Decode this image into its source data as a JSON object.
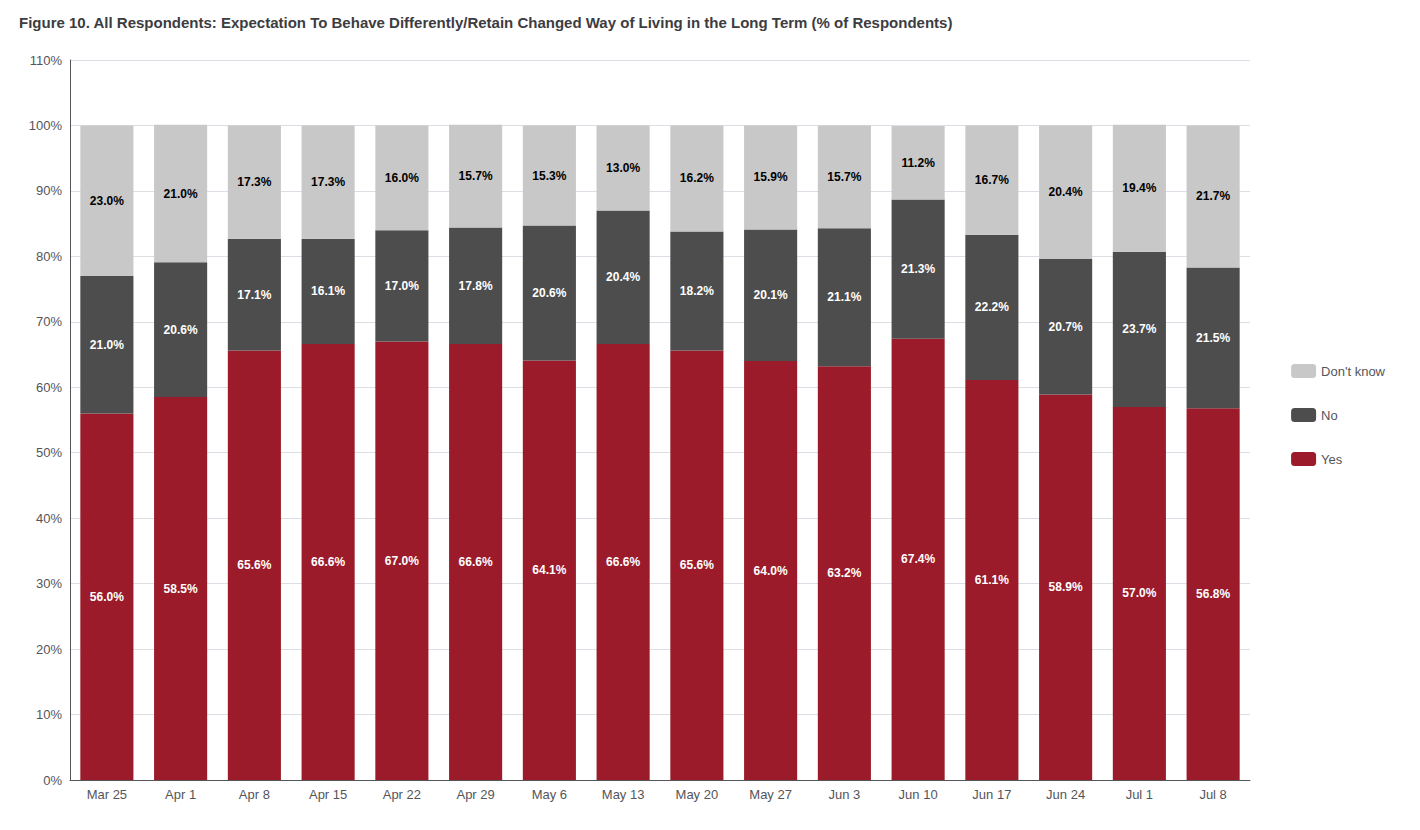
{
  "chart_data": {
    "type": "bar",
    "title": "Figure 10. All Respondents: Expectation To Behave Differently/Retain Changed Way of Living in the Long Term (% of Respondents)",
    "categories": [
      "Mar 25",
      "Apr 1",
      "Apr 8",
      "Apr 15",
      "Apr 22",
      "Apr 29",
      "May 6",
      "May 13",
      "May 20",
      "May 27",
      "Jun 3",
      "Jun 10",
      "Jun 17",
      "Jun 24",
      "Jul 1",
      "Jul 8"
    ],
    "series": [
      {
        "name": "Yes",
        "color": "#9B1B2A",
        "values": [
          56.0,
          58.5,
          65.6,
          66.6,
          67.0,
          66.6,
          64.1,
          66.6,
          65.6,
          64.0,
          63.2,
          67.4,
          61.1,
          58.9,
          57.0,
          56.8
        ],
        "value_labels": [
          "56.0%",
          "58.5%",
          "65.6%",
          "66.6%",
          "67.0%",
          "66.6%",
          "64.1%",
          "66.6%",
          "65.6%",
          "64.0%",
          "63.2%",
          "67.4%",
          "61.1%",
          "58.9%",
          "57.0%",
          "56.8%"
        ]
      },
      {
        "name": "No",
        "color": "#4D4D4D",
        "values": [
          21.0,
          20.6,
          17.1,
          16.1,
          17.0,
          17.8,
          20.6,
          20.4,
          18.2,
          20.1,
          21.1,
          21.3,
          22.2,
          20.7,
          23.7,
          21.5
        ],
        "value_labels": [
          "21.0%",
          "20.6%",
          "17.1%",
          "16.1%",
          "17.0%",
          "17.8%",
          "20.6%",
          "20.4%",
          "18.2%",
          "20.1%",
          "21.1%",
          "21.3%",
          "22.2%",
          "20.7%",
          "23.7%",
          "21.5%"
        ]
      },
      {
        "name": "Don't know",
        "color": "#C8C8C8",
        "values": [
          23.0,
          21.0,
          17.3,
          17.3,
          16.0,
          15.7,
          15.3,
          13.0,
          16.2,
          15.9,
          15.7,
          11.2,
          16.7,
          20.4,
          19.4,
          21.7
        ],
        "value_labels": [
          "23.0%",
          "21.0%",
          "17.3%",
          "17.3%",
          "16.0%",
          "15.7%",
          "15.3%",
          "13.0%",
          "16.2%",
          "15.9%",
          "15.7%",
          "11.2%",
          "16.7%",
          "20.4%",
          "19.4%",
          "21.7%"
        ]
      }
    ],
    "stacked": true,
    "data_labels": true,
    "ylim": [
      0,
      110
    ],
    "yticks": [
      {
        "value": 0,
        "label": "0%"
      },
      {
        "value": 10,
        "label": "10%"
      },
      {
        "value": 20,
        "label": "20%"
      },
      {
        "value": 30,
        "label": "30%"
      },
      {
        "value": 40,
        "label": "40%"
      },
      {
        "value": 50,
        "label": "50%"
      },
      {
        "value": 60,
        "label": "60%"
      },
      {
        "value": 70,
        "label": "70%"
      },
      {
        "value": 80,
        "label": "80%"
      },
      {
        "value": 90,
        "label": "90%"
      },
      {
        "value": 100,
        "label": "100%"
      },
      {
        "value": 110,
        "label": "110%"
      }
    ],
    "grid": true,
    "legend": "right"
  }
}
